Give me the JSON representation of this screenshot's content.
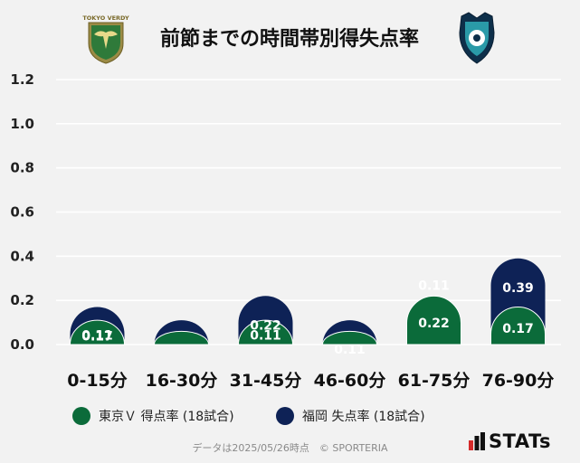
{
  "title": "前節までの時間帯別得失点率",
  "legend": {
    "home_label": "東京Ｖ 得点率 (18試合)",
    "away_label": "福岡 失点率 (18試合)"
  },
  "footer": {
    "note": "データは2025/05/26時点　© SPORTERIA"
  },
  "branding": {
    "stats_text": "STATs",
    "home_logo_text": "TOKYO VERDY",
    "home_logo_icon": "verdy-crest-icon",
    "away_logo_icon": "avispa-crest-icon"
  },
  "colors": {
    "home": "#0b6b3a",
    "away": "#0e2256",
    "background": "#f2f2f2",
    "grid": "#ffffff",
    "label": "#ffffff",
    "axis_text": "#222222"
  },
  "chart_data": {
    "type": "bar",
    "categories": [
      "0-15分",
      "16-30分",
      "31-45分",
      "46-60分",
      "61-75分",
      "76-90分"
    ],
    "series": [
      {
        "name": "東京Ｖ 得点率 (18試合)",
        "values": [
          0.11,
          0.06,
          0.11,
          0.06,
          0.22,
          0.17
        ],
        "labels": [
          "0.11",
          "",
          "0.11",
          "",
          "0.22",
          "0.17"
        ]
      },
      {
        "name": "福岡 失点率 (18試合)",
        "values": [
          0.17,
          0.11,
          0.22,
          0.11,
          0.11,
          0.39
        ],
        "labels": [
          "0.17",
          "",
          "0.22",
          "0.11",
          "0.11",
          "0.39"
        ]
      }
    ],
    "yticks": [
      "0.0",
      "0.2",
      "0.4",
      "0.6",
      "0.8",
      "1.0",
      "1.2"
    ],
    "ylim": [
      0,
      1.2
    ],
    "grid": true,
    "legend_position": "bottom"
  }
}
